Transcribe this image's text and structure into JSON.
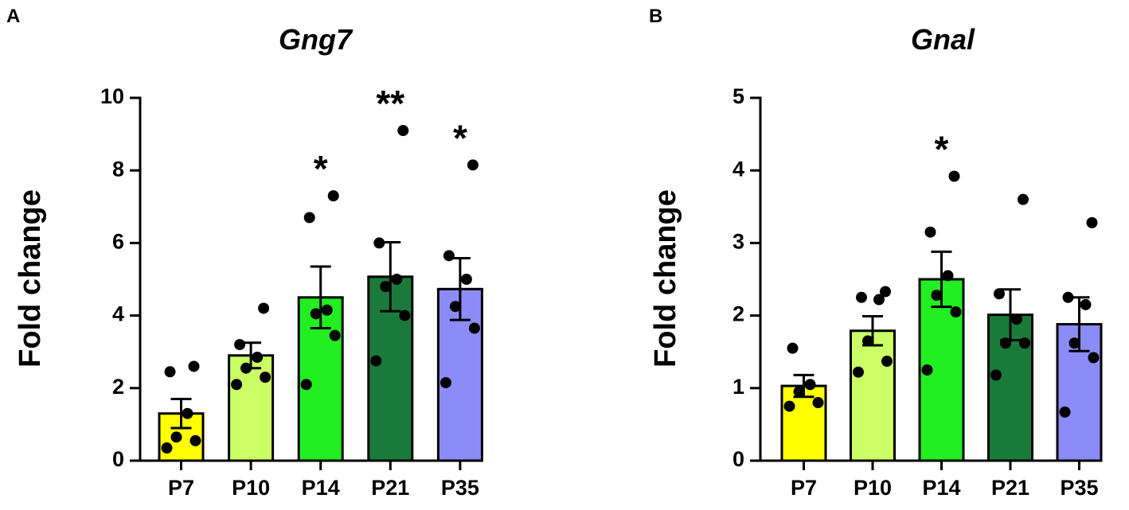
{
  "chart_data": [
    {
      "panel": "A",
      "type": "bar",
      "title": "Gng7",
      "xlabel": "",
      "ylabel": "Fold change",
      "ylim": [
        0,
        10
      ],
      "yticks": [
        0,
        2,
        4,
        6,
        8,
        10
      ],
      "categories": [
        "P7",
        "P10",
        "P14",
        "P21",
        "P35"
      ],
      "colors": [
        "#ffff00",
        "#ccff66",
        "#22ee22",
        "#1a7a3a",
        "#8c8cf8"
      ],
      "values": [
        1.3,
        2.9,
        4.5,
        5.07,
        4.73
      ],
      "sem": [
        0.4,
        0.35,
        0.85,
        0.95,
        0.85
      ],
      "points": [
        [
          0.35,
          0.55,
          0.65,
          1.3,
          2.45,
          2.6
        ],
        [
          2.1,
          2.3,
          2.55,
          2.85,
          3.2,
          4.2
        ],
        [
          2.1,
          3.45,
          4.05,
          4.15,
          6.7,
          7.3
        ],
        [
          2.75,
          4.0,
          4.8,
          5.0,
          6.0,
          9.1
        ],
        [
          2.15,
          3.65,
          4.25,
          5.0,
          5.65,
          8.15
        ]
      ],
      "significance": [
        "",
        "",
        "*",
        "**",
        "*"
      ]
    },
    {
      "panel": "B",
      "type": "bar",
      "title": "Gnal",
      "xlabel": "",
      "ylabel": "Fold change",
      "ylim": [
        0,
        5
      ],
      "yticks": [
        0,
        1,
        2,
        3,
        4,
        5
      ],
      "categories": [
        "P7",
        "P10",
        "P14",
        "P21",
        "P35"
      ],
      "colors": [
        "#ffff00",
        "#ccff66",
        "#22ee22",
        "#1a7a3a",
        "#8c8cf8"
      ],
      "values": [
        1.03,
        1.79,
        2.5,
        2.01,
        1.88
      ],
      "sem": [
        0.15,
        0.2,
        0.38,
        0.35,
        0.37
      ],
      "points": [
        [
          0.75,
          0.8,
          0.95,
          1.05,
          1.55
        ],
        [
          1.22,
          1.37,
          1.65,
          2.22,
          2.25,
          2.33
        ],
        [
          1.25,
          2.05,
          2.28,
          2.55,
          3.15,
          3.92
        ],
        [
          1.18,
          1.62,
          1.62,
          1.95,
          2.3,
          3.6
        ],
        [
          0.67,
          1.42,
          1.62,
          2.15,
          2.25,
          3.28
        ]
      ],
      "significance": [
        "",
        "",
        "*",
        "",
        ""
      ]
    }
  ]
}
